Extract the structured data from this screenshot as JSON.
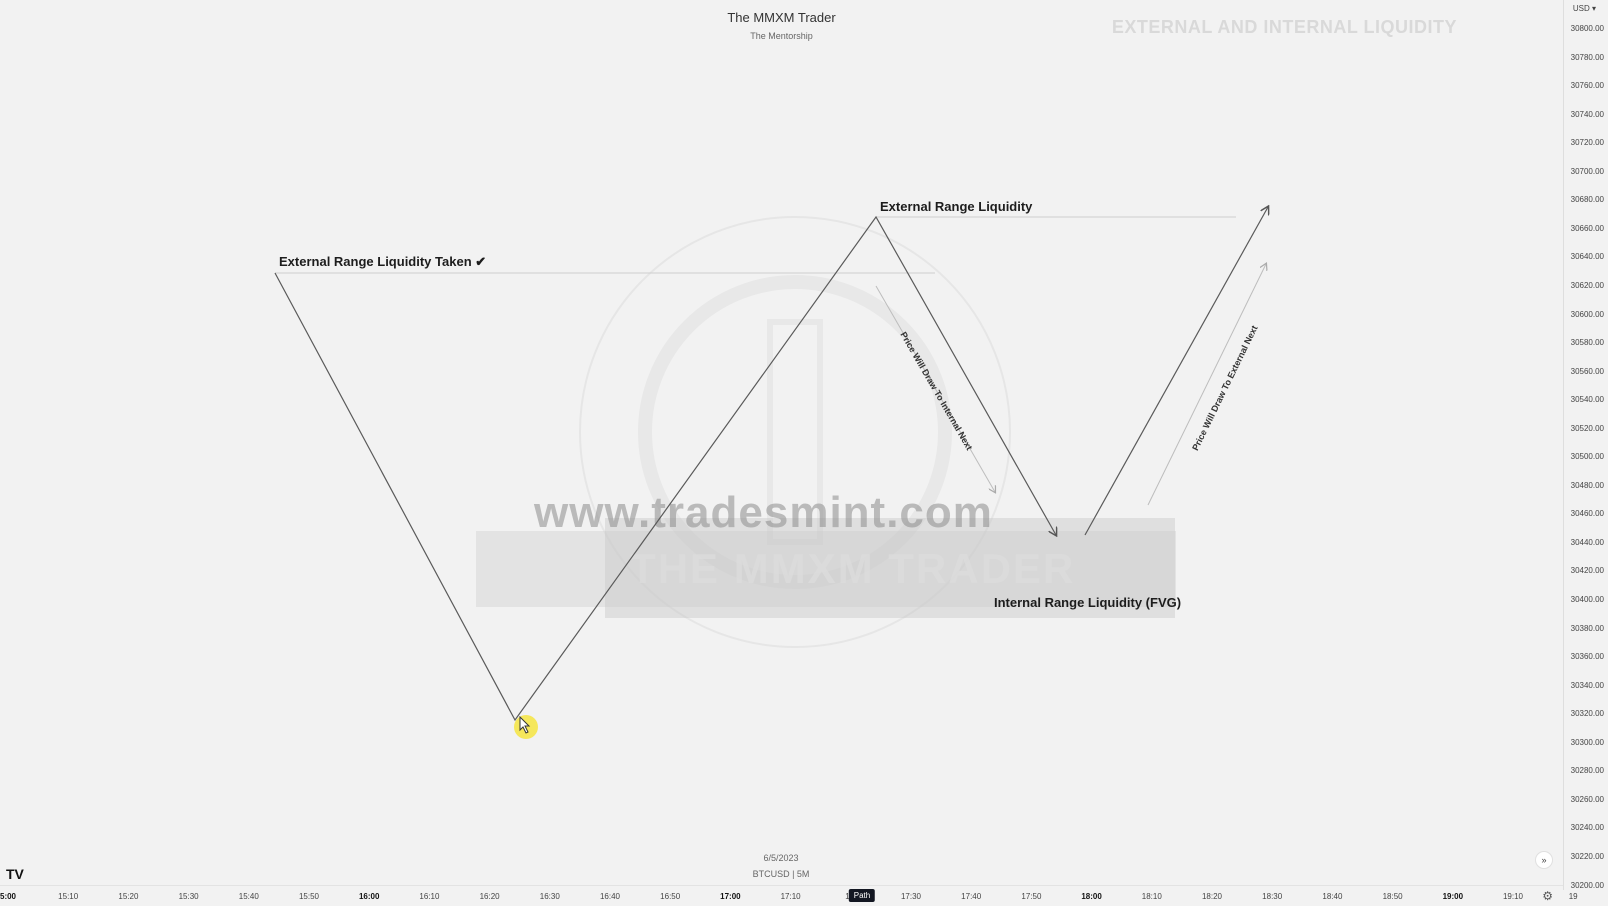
{
  "header": {
    "title": "The MMXM Trader",
    "subtitle": "The Mentorship",
    "big_title": "EXTERNAL AND INTERNAL LIQUIDITY"
  },
  "annotations": {
    "erl_taken": "External Range Liquidity Taken ✔",
    "erl": "External Range Liquidity",
    "irl": "Internal Range Liquidity (FVG)",
    "draw_internal": "Price Will Draw To Internal Next",
    "draw_external": "Price Will Draw To External Next"
  },
  "watermark": {
    "url": "www.tradesmint.com",
    "brand": "THE MMXM TRADER"
  },
  "price_axis": {
    "currency": "USD ▾",
    "ticks": [
      "30800.00",
      "30780.00",
      "30760.00",
      "30740.00",
      "30720.00",
      "30700.00",
      "30680.00",
      "30660.00",
      "30640.00",
      "30620.00",
      "30600.00",
      "30580.00",
      "30560.00",
      "30540.00",
      "30520.00",
      "30500.00",
      "30480.00",
      "30460.00",
      "30440.00",
      "30420.00",
      "30400.00",
      "30380.00",
      "30360.00",
      "30340.00",
      "30320.00",
      "30300.00",
      "30280.00",
      "30260.00",
      "30240.00",
      "30220.00",
      "30200.00"
    ]
  },
  "time_axis": {
    "ticks": [
      {
        "label": "5:00",
        "bold": true
      },
      {
        "label": "15:10",
        "bold": false
      },
      {
        "label": "15:20",
        "bold": false
      },
      {
        "label": "15:30",
        "bold": false
      },
      {
        "label": "15:40",
        "bold": false
      },
      {
        "label": "15:50",
        "bold": false
      },
      {
        "label": "16:00",
        "bold": true
      },
      {
        "label": "16:10",
        "bold": false
      },
      {
        "label": "16:20",
        "bold": false
      },
      {
        "label": "16:30",
        "bold": false
      },
      {
        "label": "16:40",
        "bold": false
      },
      {
        "label": "16:50",
        "bold": false
      },
      {
        "label": "17:00",
        "bold": true
      },
      {
        "label": "17:10",
        "bold": false
      },
      {
        "label": "17:",
        "bold": false
      },
      {
        "label": "17:30",
        "bold": false
      },
      {
        "label": "17:40",
        "bold": false
      },
      {
        "label": "17:50",
        "bold": false
      },
      {
        "label": "18:00",
        "bold": true
      },
      {
        "label": "18:10",
        "bold": false
      },
      {
        "label": "18:20",
        "bold": false
      },
      {
        "label": "18:30",
        "bold": false
      },
      {
        "label": "18:40",
        "bold": false
      },
      {
        "label": "18:50",
        "bold": false
      },
      {
        "label": "19:00",
        "bold": true
      },
      {
        "label": "19:10",
        "bold": false
      },
      {
        "label": "19",
        "bold": false
      }
    ],
    "badge": "Path"
  },
  "footer": {
    "date": "6/5/2023",
    "symbol": "BTCUSD | 5M",
    "logo": "TV",
    "nav_arrow": "»",
    "settings_icon": "⚙"
  },
  "chart_data": {
    "type": "line",
    "title": "EXTERNAL AND INTERNAL LIQUIDITY",
    "xlabel": "",
    "ylabel": "",
    "ylim": [
      30200,
      30800
    ],
    "path": [
      {
        "x": "16:02",
        "y": 30620
      },
      {
        "x": "16:35",
        "y": 30300
      },
      {
        "x": "17:37",
        "y": 30660
      },
      {
        "x": "17:55",
        "y": 30445
      },
      {
        "x": "18:04",
        "y": 30445
      },
      {
        "x": "18:25",
        "y": 30670
      }
    ]
  }
}
